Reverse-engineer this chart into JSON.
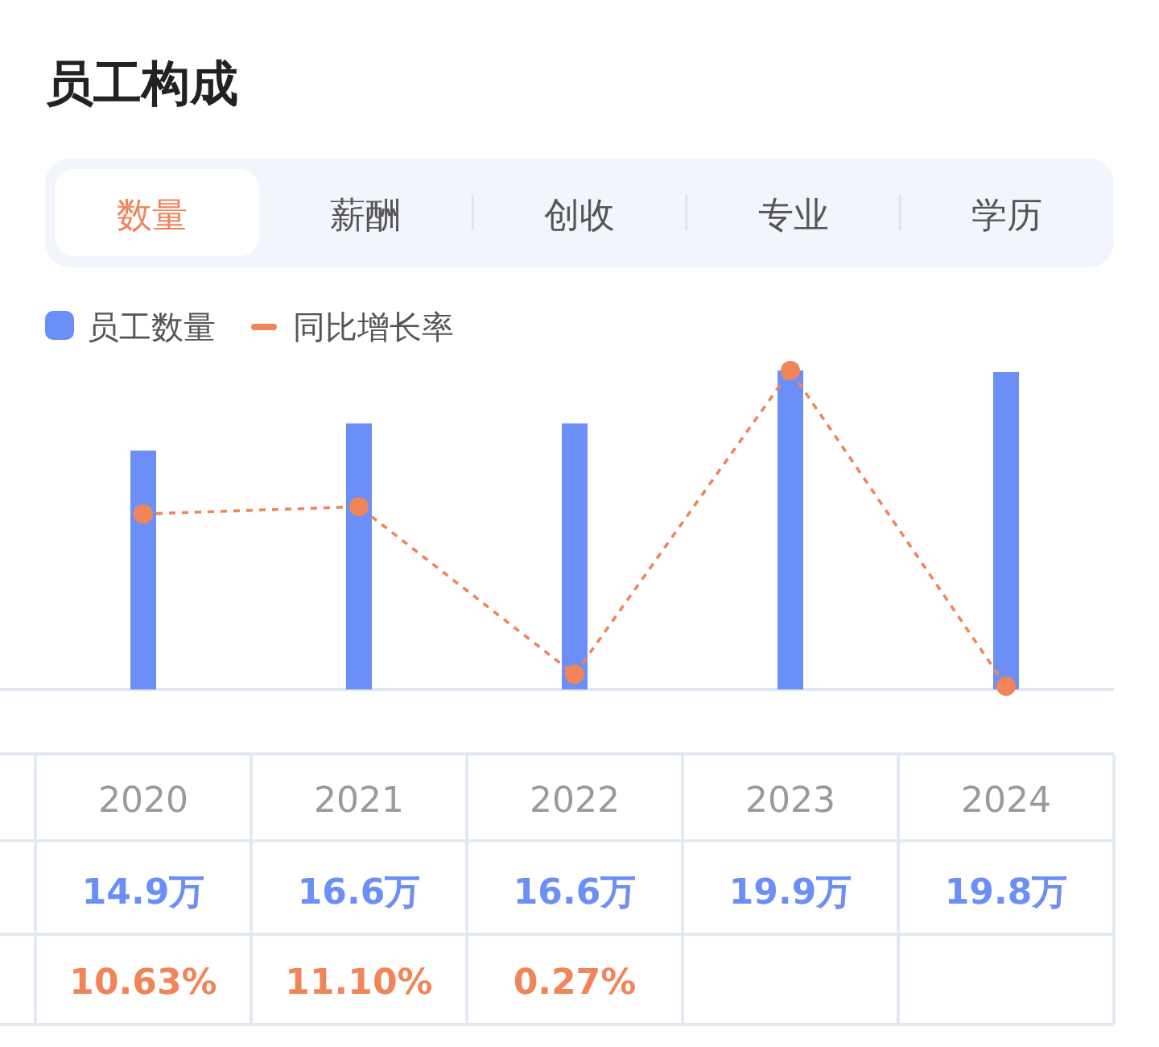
{
  "chart_data": {
    "type": "bar",
    "title": "员工构成",
    "annotations": [
      "数量",
      "薪酬",
      "创收",
      "专业",
      "学历"
    ],
    "categories": [
      "2020",
      "2021",
      "2022",
      "2023",
      "2024"
    ],
    "series": [
      {
        "name": "员工数量",
        "color": "#6b8ff7",
        "values": [
          14.9,
          16.6,
          16.6,
          19.9,
          19.8
        ],
        "value_labels": [
          "14.9万",
          "16.6万",
          "16.6万",
          "19.9万",
          "19.8万"
        ]
      },
      {
        "name": "同比增长率",
        "type": "line",
        "axis": "y2",
        "color": "#f0855a",
        "marker": "circle",
        "line_style": "dashed",
        "values": [
          10.63,
          11.1,
          0.27,
          19.9,
          -0.5
        ],
        "value_labels": [
          "10.63%",
          "11.10%",
          "0.27%",
          null,
          null
        ]
      }
    ],
    "legend": "top left"
  }
}
